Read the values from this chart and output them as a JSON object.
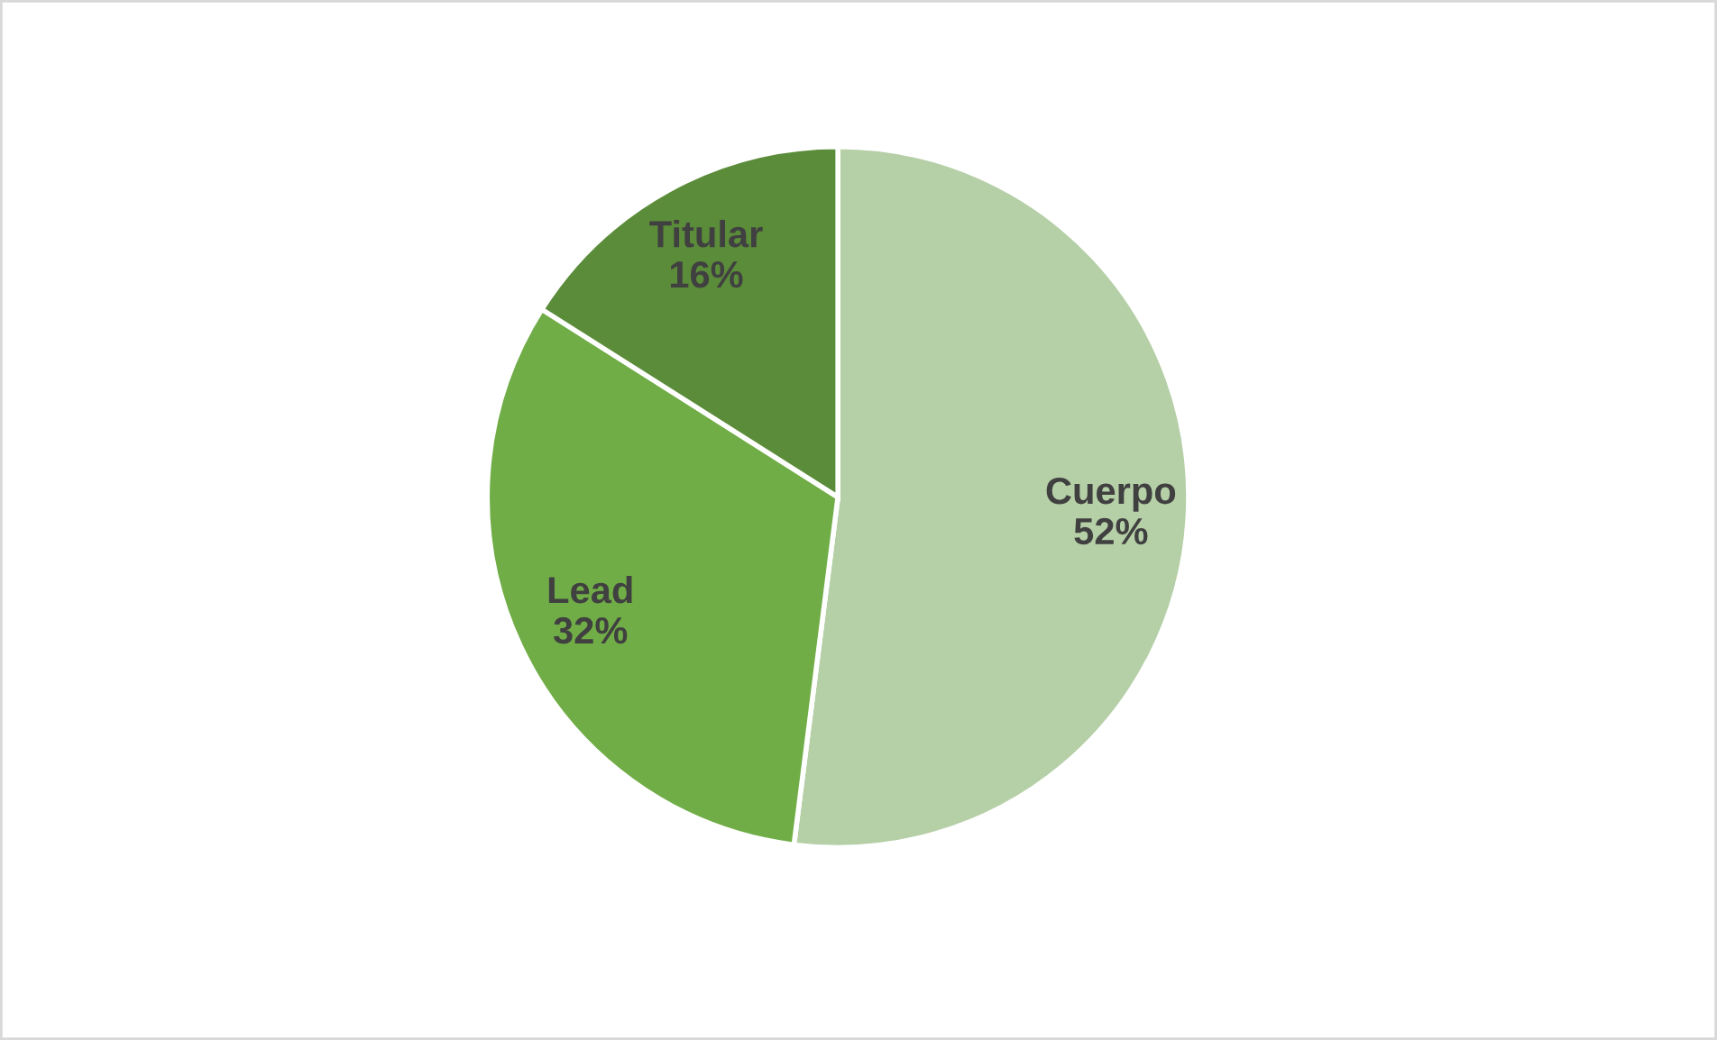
{
  "chart_data": {
    "type": "pie",
    "categories": [
      "Cuerpo",
      "Lead",
      "Titular"
    ],
    "values": [
      52,
      32,
      16
    ],
    "value_labels": [
      "52%",
      "32%",
      "16%"
    ],
    "colors": [
      "#b5cfa7",
      "#70ad47",
      "#5b8c39"
    ]
  }
}
